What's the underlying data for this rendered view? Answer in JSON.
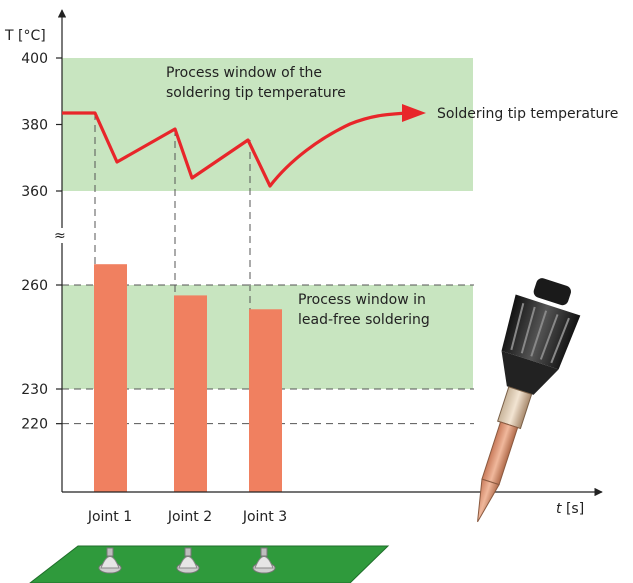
{
  "axes": {
    "y_label": "T [°C]",
    "x_label_italic": "t",
    "x_label_unit": " [s]",
    "break_symbol": "≈"
  },
  "y_ticks": [
    {
      "label": "400",
      "value": 400
    },
    {
      "label": "380",
      "value": 380
    },
    {
      "label": "360",
      "value": 360
    },
    {
      "label": "260",
      "value": 260
    },
    {
      "label": "230",
      "value": 230
    },
    {
      "label": "220",
      "value": 220
    }
  ],
  "windows": {
    "tip": {
      "line1": "Process window of the",
      "line2": "soldering tip temperature",
      "range": [
        360,
        400
      ]
    },
    "lead_free": {
      "line1": "Process window in",
      "line2": "lead-free soldering",
      "range": [
        230,
        260
      ]
    }
  },
  "tip_curve": {
    "label": "Soldering tip temperature",
    "color": "#e8262a"
  },
  "joints": [
    {
      "label": "Joint 1",
      "value": 266
    },
    {
      "label": "Joint 2",
      "value": 257
    },
    {
      "label": "Joint 3",
      "value": 253
    }
  ],
  "colors": {
    "window_fill": "#c8e5c0",
    "bar_fill": "#f08060",
    "curve": "#e8262a",
    "board": "#2f9a3c"
  },
  "icons": {
    "soldering_iron": "soldering-iron-illustration",
    "circuit_board": "circuit-board-illustration"
  }
}
